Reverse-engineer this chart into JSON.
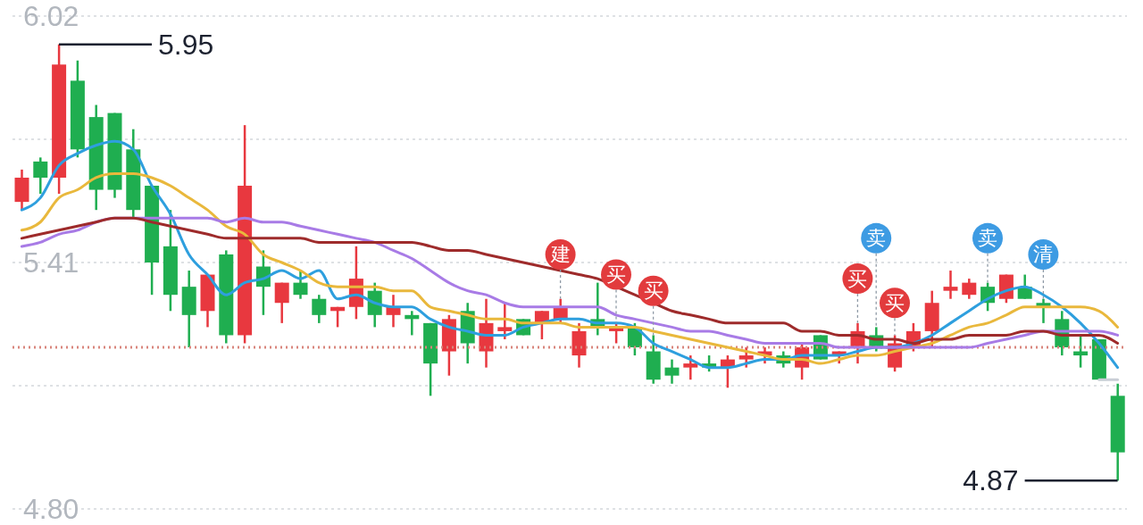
{
  "chart_data": {
    "type": "candlestick",
    "categories": [
      null,
      null,
      null,
      null,
      null,
      null,
      null,
      null,
      null,
      null,
      null,
      null,
      null,
      null,
      null,
      null,
      null,
      null,
      null,
      null,
      null,
      null,
      null,
      null,
      null,
      null,
      null,
      null,
      null,
      null,
      null,
      null,
      null,
      null,
      null,
      null,
      null,
      null,
      null,
      null,
      null,
      null,
      null,
      null,
      null,
      null,
      null,
      null,
      null,
      null,
      null,
      null,
      null,
      null,
      null,
      null,
      null,
      null,
      null,
      null
    ],
    "ohlc": [
      [
        5.56,
        5.64,
        5.54,
        5.62
      ],
      [
        5.66,
        5.67,
        5.58,
        5.62
      ],
      [
        5.62,
        5.95,
        5.58,
        5.9
      ],
      [
        5.86,
        5.91,
        5.67,
        5.69
      ],
      [
        5.77,
        5.8,
        5.54,
        5.59
      ],
      [
        5.78,
        5.78,
        5.57,
        5.59
      ],
      [
        5.69,
        5.74,
        5.52,
        5.54
      ],
      [
        5.6,
        5.6,
        5.33,
        5.41
      ],
      [
        5.45,
        5.54,
        5.29,
        5.33
      ],
      [
        5.35,
        5.39,
        5.2,
        5.28
      ],
      [
        5.29,
        5.38,
        5.25,
        5.38
      ],
      [
        5.43,
        5.44,
        5.21,
        5.23
      ],
      [
        5.23,
        5.75,
        5.21,
        5.6
      ],
      [
        5.4,
        5.44,
        5.28,
        5.35
      ],
      [
        5.31,
        5.36,
        5.26,
        5.36
      ],
      [
        5.36,
        5.39,
        5.32,
        5.33
      ],
      [
        5.32,
        5.33,
        5.26,
        5.28
      ],
      [
        5.29,
        5.3,
        5.25,
        5.3
      ],
      [
        5.3,
        5.45,
        5.27,
        5.37
      ],
      [
        5.34,
        5.36,
        5.25,
        5.28
      ],
      [
        5.28,
        5.33,
        5.25,
        5.3
      ],
      [
        5.28,
        5.29,
        5.23,
        5.27
      ],
      [
        5.26,
        5.26,
        5.08,
        5.16
      ],
      [
        5.19,
        5.28,
        5.13,
        5.27
      ],
      [
        5.29,
        5.31,
        5.16,
        5.21
      ],
      [
        5.19,
        5.32,
        5.15,
        5.26
      ],
      [
        5.24,
        5.31,
        5.22,
        5.25
      ],
      [
        5.27,
        5.27,
        5.23,
        5.23
      ],
      [
        5.26,
        5.29,
        5.22,
        5.29
      ],
      [
        5.27,
        5.32,
        5.26,
        5.3
      ],
      [
        5.18,
        5.26,
        5.15,
        5.24
      ],
      [
        5.27,
        5.36,
        5.23,
        5.25
      ],
      [
        5.24,
        5.26,
        5.21,
        5.25
      ],
      [
        5.25,
        5.26,
        5.18,
        5.2
      ],
      [
        5.19,
        5.23,
        5.11,
        5.12
      ],
      [
        5.15,
        5.17,
        5.11,
        5.13
      ],
      [
        5.15,
        5.18,
        5.12,
        5.16
      ],
      [
        5.16,
        5.18,
        5.14,
        5.15
      ],
      [
        5.15,
        5.18,
        5.1,
        5.17
      ],
      [
        5.17,
        5.2,
        5.15,
        5.18
      ],
      [
        5.18,
        5.2,
        5.16,
        5.19
      ],
      [
        5.18,
        5.19,
        5.15,
        5.16
      ],
      [
        5.15,
        5.21,
        5.12,
        5.2
      ],
      [
        5.23,
        5.23,
        5.17,
        5.17
      ],
      [
        5.18,
        5.19,
        5.16,
        5.19
      ],
      [
        5.2,
        5.26,
        5.16,
        5.24
      ],
      [
        5.23,
        5.25,
        5.19,
        5.2
      ],
      [
        5.15,
        5.23,
        5.14,
        5.21
      ],
      [
        5.2,
        5.26,
        5.19,
        5.24
      ],
      [
        5.24,
        5.34,
        5.2,
        5.31
      ],
      [
        5.34,
        5.39,
        5.32,
        5.35
      ],
      [
        5.33,
        5.37,
        5.32,
        5.36
      ],
      [
        5.35,
        5.36,
        5.29,
        5.31
      ],
      [
        5.32,
        5.38,
        5.31,
        5.38
      ],
      [
        5.35,
        5.38,
        5.32,
        5.32
      ],
      [
        5.31,
        5.32,
        5.26,
        5.3
      ],
      [
        5.27,
        5.29,
        5.18,
        5.2
      ],
      [
        5.19,
        5.23,
        5.15,
        5.18
      ],
      [
        5.22,
        5.22,
        5.12,
        5.12
      ],
      [
        5.08,
        5.11,
        4.87,
        4.94
      ]
    ],
    "colors": [
      "#e8383f",
      "#1fae50",
      "#e8383f",
      "#1fae50",
      "#1fae50",
      "#1fae50",
      "#1fae50",
      "#1fae50",
      "#1fae50",
      "#1fae50",
      "#e8383f",
      "#1fae50",
      "#e8383f",
      "#1fae50",
      "#e8383f",
      "#1fae50",
      "#1fae50",
      "#e8383f",
      "#e8383f",
      "#1fae50",
      "#e8383f",
      "#1fae50",
      "#1fae50",
      "#e8383f",
      "#1fae50",
      "#e8383f",
      "#e8383f",
      "#1fae50",
      "#e8383f",
      "#e8383f",
      "#e8383f",
      "#1fae50",
      "#e8383f",
      "#1fae50",
      "#1fae50",
      "#1fae50",
      "#e8383f",
      "#1fae50",
      "#e8383f",
      "#e8383f",
      "#e8383f",
      "#1fae50",
      "#e8383f",
      "#1fae50",
      "#e8383f",
      "#e8383f",
      "#1fae50",
      "#e8383f",
      "#e8383f",
      "#e8383f",
      "#e8383f",
      "#e8383f",
      "#1fae50",
      "#e8383f",
      "#1fae50",
      "#1fae50",
      "#1fae50",
      "#1fae50",
      "#1fae50",
      "#1fae50"
    ],
    "series": [
      {
        "type": "line",
        "color": "#2e9fde",
        "values": [
          5.54,
          5.57,
          5.65,
          5.68,
          5.7,
          5.71,
          5.69,
          5.6,
          5.53,
          5.43,
          5.38,
          5.33,
          5.36,
          5.37,
          5.39,
          5.37,
          5.39,
          5.32,
          5.33,
          5.31,
          5.3,
          5.3,
          5.27,
          5.25,
          5.24,
          5.23,
          5.23,
          5.25,
          5.26,
          5.27,
          5.27,
          5.26,
          5.26,
          5.25,
          5.21,
          5.19,
          5.17,
          5.15,
          5.15,
          5.16,
          5.17,
          5.17,
          5.18,
          5.18,
          5.18,
          5.19,
          5.2,
          5.2,
          5.21,
          5.23,
          5.26,
          5.29,
          5.32,
          5.34,
          5.35,
          5.33,
          5.3,
          5.26,
          5.21,
          5.15
        ]
      },
      {
        "type": "line",
        "color": "#e9b83c",
        "values": [
          5.49,
          5.51,
          5.57,
          5.59,
          5.62,
          5.63,
          5.63,
          5.62,
          5.6,
          5.57,
          5.54,
          5.5,
          5.48,
          5.43,
          5.41,
          5.39,
          5.36,
          5.35,
          5.35,
          5.35,
          5.34,
          5.34,
          5.3,
          5.29,
          5.28,
          5.27,
          5.27,
          5.26,
          5.26,
          5.26,
          5.25,
          5.25,
          5.25,
          5.25,
          5.24,
          5.23,
          5.22,
          5.21,
          5.2,
          5.19,
          5.18,
          5.17,
          5.17,
          5.16,
          5.17,
          5.18,
          5.18,
          5.19,
          5.2,
          5.21,
          5.23,
          5.25,
          5.26,
          5.28,
          5.3,
          5.3,
          5.3,
          5.3,
          5.29,
          5.25
        ]
      },
      {
        "type": "line",
        "color": "#a87be6",
        "values": [
          5.45,
          5.46,
          5.48,
          5.49,
          5.51,
          5.52,
          5.52,
          5.52,
          5.52,
          5.52,
          5.52,
          5.51,
          5.52,
          5.51,
          5.51,
          5.5,
          5.49,
          5.48,
          5.47,
          5.46,
          5.44,
          5.42,
          5.39,
          5.36,
          5.34,
          5.33,
          5.31,
          5.3,
          5.3,
          5.3,
          5.3,
          5.3,
          5.28,
          5.27,
          5.26,
          5.25,
          5.24,
          5.24,
          5.23,
          5.22,
          5.21,
          5.21,
          5.21,
          5.21,
          5.2,
          5.2,
          5.2,
          5.2,
          5.2,
          5.2,
          5.2,
          5.2,
          5.21,
          5.22,
          5.23,
          5.24,
          5.24,
          5.24,
          5.24,
          5.23
        ]
      },
      {
        "type": "line",
        "color": "#9e2b2b",
        "values": [
          5.47,
          5.48,
          5.49,
          5.5,
          5.51,
          5.52,
          5.52,
          5.51,
          5.5,
          5.49,
          5.48,
          5.47,
          5.47,
          5.47,
          5.47,
          5.47,
          5.46,
          5.46,
          5.46,
          5.46,
          5.46,
          5.46,
          5.45,
          5.44,
          5.44,
          5.43,
          5.42,
          5.41,
          5.4,
          5.39,
          5.38,
          5.37,
          5.35,
          5.33,
          5.31,
          5.29,
          5.28,
          5.27,
          5.26,
          5.26,
          5.26,
          5.26,
          5.24,
          5.24,
          5.23,
          5.23,
          5.22,
          5.22,
          5.21,
          5.22,
          5.22,
          5.23,
          5.23,
          5.23,
          5.24,
          5.24,
          5.23,
          5.23,
          5.23,
          5.21
        ]
      },
      {
        "type": "line",
        "color": "#c9ced6",
        "values": [
          null,
          null,
          null,
          null,
          null,
          null,
          null,
          null,
          null,
          null,
          null,
          null,
          null,
          null,
          null,
          null,
          null,
          null,
          null,
          null,
          null,
          null,
          null,
          null,
          null,
          null,
          null,
          null,
          null,
          null,
          null,
          null,
          null,
          null,
          null,
          null,
          null,
          null,
          null,
          null,
          null,
          null,
          null,
          null,
          null,
          null,
          null,
          null,
          null,
          null,
          null,
          null,
          null,
          null,
          null,
          null,
          null,
          null,
          5.12,
          5.12
        ]
      },
      {
        "type": "scatter",
        "color": "#e23b3d",
        "values": [
          null,
          null,
          null,
          null,
          null,
          null,
          null,
          null,
          null,
          null,
          null,
          null,
          null,
          null,
          null,
          null,
          null,
          null,
          null,
          null,
          null,
          null,
          null,
          null,
          null,
          null,
          null,
          null,
          null,
          5.43,
          null,
          null,
          5.38,
          null,
          5.34,
          null,
          null,
          null,
          null,
          null,
          null,
          null,
          null,
          null,
          null,
          5.37,
          null,
          5.31,
          null,
          null,
          null,
          null,
          null,
          null,
          null,
          null,
          null,
          null,
          null,
          null
        ],
        "value_labels": [
          null,
          null,
          null,
          null,
          null,
          null,
          null,
          null,
          null,
          null,
          null,
          null,
          null,
          null,
          null,
          null,
          null,
          null,
          null,
          null,
          null,
          null,
          null,
          null,
          null,
          null,
          null,
          null,
          null,
          "建",
          null,
          null,
          "买",
          null,
          "买",
          null,
          null,
          null,
          null,
          null,
          null,
          null,
          null,
          null,
          null,
          "买",
          null,
          "买",
          null,
          null,
          null,
          null,
          null,
          null,
          null,
          null,
          null,
          null,
          null,
          null
        ]
      },
      {
        "type": "scatter",
        "color": "#3d9be3",
        "values": [
          null,
          null,
          null,
          null,
          null,
          null,
          null,
          null,
          null,
          null,
          null,
          null,
          null,
          null,
          null,
          null,
          null,
          null,
          null,
          null,
          null,
          null,
          null,
          null,
          null,
          null,
          null,
          null,
          null,
          null,
          null,
          null,
          null,
          null,
          null,
          null,
          null,
          null,
          null,
          null,
          null,
          null,
          null,
          null,
          null,
          null,
          5.47,
          null,
          null,
          null,
          null,
          null,
          5.47,
          null,
          null,
          5.43,
          null,
          null,
          null,
          null
        ],
        "value_labels": [
          null,
          null,
          null,
          null,
          null,
          null,
          null,
          null,
          null,
          null,
          null,
          null,
          null,
          null,
          null,
          null,
          null,
          null,
          null,
          null,
          null,
          null,
          null,
          null,
          null,
          null,
          null,
          null,
          null,
          null,
          null,
          null,
          null,
          null,
          null,
          null,
          null,
          null,
          null,
          null,
          null,
          null,
          null,
          null,
          null,
          null,
          "卖",
          null,
          null,
          null,
          null,
          null,
          "卖",
          null,
          null,
          "清",
          null,
          null,
          null,
          null
        ]
      }
    ],
    "ylim": [
      4.8,
      6.02
    ],
    "yticks": [
      {
        "value": 4.8,
        "label": "4.80"
      },
      {
        "value": 5.105,
        "label": null
      },
      5.41,
      {
        "value": 5.715,
        "label": null
      },
      6.02
    ],
    "grid": "y",
    "tick_labels": "y",
    "ref_lines": [
      {
        "axis": "y",
        "value": 5.2,
        "color": "#d9857d",
        "line_style": "dotted"
      }
    ],
    "annotations": [
      "5.95",
      "4.87"
    ]
  }
}
